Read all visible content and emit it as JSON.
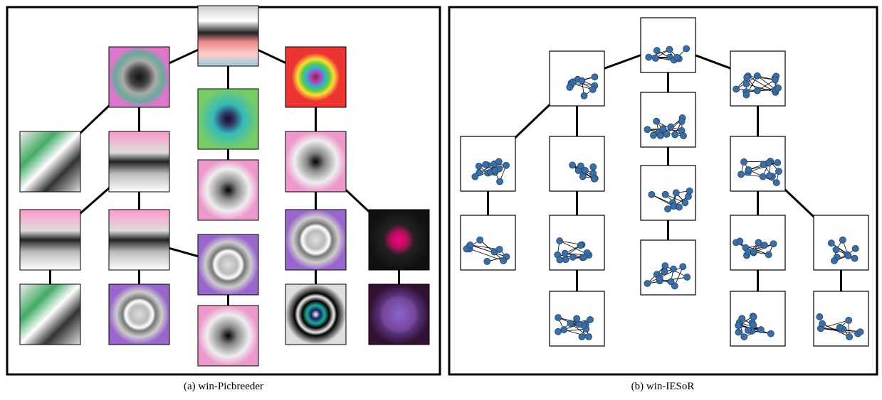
{
  "panels": [
    {
      "caption": "(a) win-Picbreeder"
    },
    {
      "caption": "(b) win-IESoR"
    }
  ]
}
